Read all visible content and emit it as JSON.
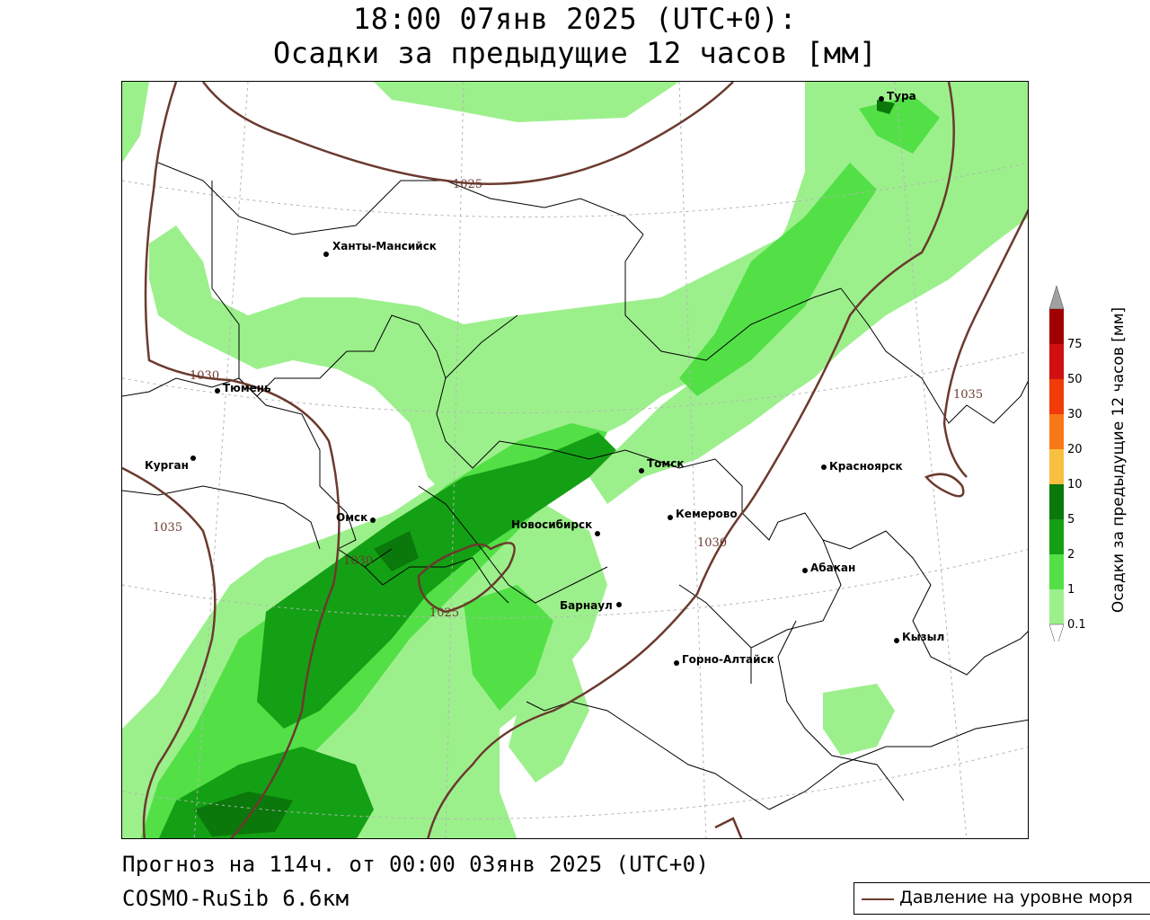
{
  "header": {
    "title_line1": "18:00 07янв 2025 (UTC+0):",
    "title_line2": "Осадки за предыдущие 12 часов [мм]"
  },
  "footer": {
    "forecast": "Прогноз на 114ч. от 00:00 03янв 2025 (UTC+0)",
    "model": "COSMO-RuSib 6.6км"
  },
  "legend": {
    "pressure_label": "Давление на уровне моря",
    "pressure_color": "#6b3a2e"
  },
  "colorbar": {
    "title": "Осадки за предыдущие 12 часов [мм]",
    "levels": [
      {
        "label": "0.1",
        "color": "#9cf08c"
      },
      {
        "label": "1",
        "color": "#52e046"
      },
      {
        "label": "2",
        "color": "#14a014"
      },
      {
        "label": "5",
        "color": "#0a780a"
      },
      {
        "label": "10",
        "color": "#f8c040"
      },
      {
        "label": "20",
        "color": "#f87818"
      },
      {
        "label": "30",
        "color": "#f03c08"
      },
      {
        "label": "50",
        "color": "#d01010"
      },
      {
        "label": "75",
        "color": "#a00000"
      }
    ],
    "over_color": "#a0a0a0"
  },
  "map": {
    "colors": {
      "light_green": "#9cf08c",
      "green": "#52e046",
      "dark_green": "#14a014",
      "darkest_green": "#0a780a",
      "isobar": "#6b3a2e"
    },
    "cities": [
      {
        "name": "Тура"
      },
      {
        "name": "Ханты-Мансийск"
      },
      {
        "name": "Тюмень"
      },
      {
        "name": "Курган"
      },
      {
        "name": "Омск"
      },
      {
        "name": "Новосибирск"
      },
      {
        "name": "Томск"
      },
      {
        "name": "Кемерово"
      },
      {
        "name": "Красноярск"
      },
      {
        "name": "Абакан"
      },
      {
        "name": "Барнаул"
      },
      {
        "name": "Горно-Алтайск"
      },
      {
        "name": "Кызыл"
      }
    ],
    "isobar_labels": [
      "1025",
      "1030",
      "1035",
      "1030",
      "1025",
      "1035",
      "1030"
    ]
  }
}
